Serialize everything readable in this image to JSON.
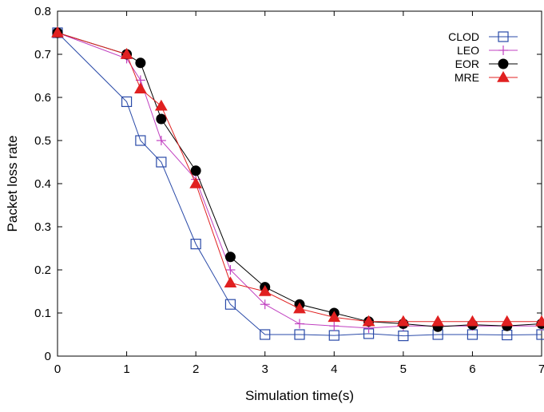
{
  "chart_data": {
    "type": "line",
    "xlabel": "Simulation time(s)",
    "ylabel": "Packet loss rate",
    "xlim": [
      0,
      7
    ],
    "ylim": [
      0,
      0.8
    ],
    "xticks": [
      0,
      1,
      2,
      3,
      4,
      5,
      6,
      7
    ],
    "yticks": [
      0,
      0.1,
      0.2,
      0.3,
      0.4,
      0.5,
      0.6,
      0.7,
      0.8
    ],
    "xtick_labels": [
      "0",
      "1",
      "2",
      "3",
      "4",
      "5",
      "6",
      "7"
    ],
    "ytick_labels": [
      "0",
      "0.1",
      "0.2",
      "0.3",
      "0.4",
      "0.5",
      "0.6",
      "0.7",
      "0.8"
    ],
    "legend_position": "top-right",
    "grid": false,
    "series": [
      {
        "name": "CLOD",
        "color": "#2a4aa8",
        "marker": "open-square",
        "x": [
          0,
          1,
          1.2,
          1.5,
          2,
          2.5,
          3,
          3.5,
          4,
          4.5,
          5,
          5.5,
          6,
          6.5,
          7
        ],
        "y": [
          0.75,
          0.59,
          0.5,
          0.45,
          0.26,
          0.12,
          0.05,
          0.05,
          0.048,
          0.052,
          0.047,
          0.05,
          0.05,
          0.049,
          0.05
        ]
      },
      {
        "name": "LEO",
        "color": "#c040c0",
        "marker": "plus",
        "x": [
          0,
          1,
          1.2,
          1.5,
          2,
          2.5,
          3,
          3.5,
          4,
          4.5,
          5,
          5.5,
          6,
          6.5,
          7
        ],
        "y": [
          0.75,
          0.69,
          0.64,
          0.5,
          0.41,
          0.2,
          0.12,
          0.075,
          0.07,
          0.065,
          0.07,
          0.07,
          0.07,
          0.07,
          0.07
        ]
      },
      {
        "name": "EOR",
        "color": "#000000",
        "marker": "filled-circle",
        "x": [
          0,
          1,
          1.2,
          1.5,
          2,
          2.5,
          3,
          3.5,
          4,
          4.5,
          5,
          5.5,
          6,
          6.5,
          7
        ],
        "y": [
          0.75,
          0.7,
          0.68,
          0.55,
          0.43,
          0.23,
          0.16,
          0.12,
          0.1,
          0.08,
          0.075,
          0.068,
          0.073,
          0.07,
          0.075
        ]
      },
      {
        "name": "MRE",
        "color": "#e02020",
        "marker": "filled-triangle",
        "x": [
          0,
          1,
          1.2,
          1.5,
          2,
          2.5,
          3,
          3.5,
          4,
          4.5,
          5,
          5.5,
          6,
          6.5,
          7
        ],
        "y": [
          0.75,
          0.7,
          0.62,
          0.58,
          0.4,
          0.17,
          0.15,
          0.11,
          0.09,
          0.08,
          0.08,
          0.08,
          0.08,
          0.08,
          0.08
        ]
      }
    ]
  }
}
